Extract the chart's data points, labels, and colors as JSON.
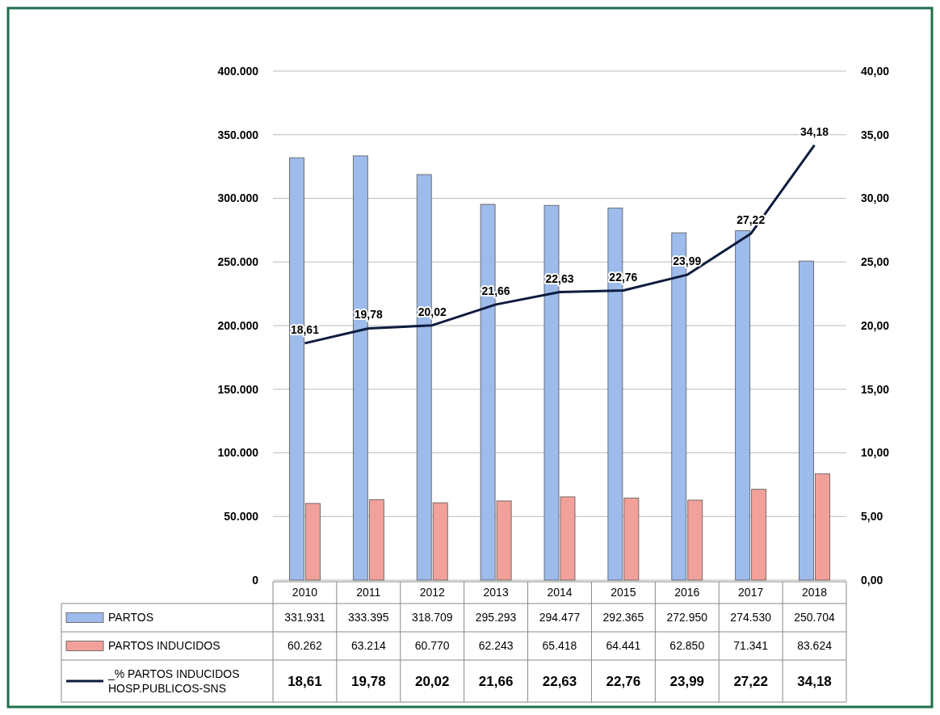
{
  "chart_data": {
    "type": "bar",
    "categories": [
      "2010",
      "2011",
      "2012",
      "2013",
      "2014",
      "2015",
      "2016",
      "2017",
      "2018"
    ],
    "series": [
      {
        "name": "PARTOS",
        "color": "#9dbbeb",
        "values": [
          331931,
          333395,
          318709,
          295293,
          294477,
          292365,
          272950,
          274530,
          250704
        ],
        "value_labels": [
          "331.931",
          "333.395",
          "318.709",
          "295.293",
          "294.477",
          "292.365",
          "272.950",
          "274.530",
          "250.704"
        ]
      },
      {
        "name": "PARTOS INDUCIDOS",
        "color": "#f2a19a",
        "values": [
          60262,
          63214,
          60770,
          62243,
          65418,
          64441,
          62850,
          71341,
          83624
        ],
        "value_labels": [
          "60.262",
          "63.214",
          "60.770",
          "62.243",
          "65.418",
          "64.441",
          "62.850",
          "71.341",
          "83.624"
        ]
      },
      {
        "name": "_% PARTOS INDUCIDOS HOSP.PUBLICOS-SNS",
        "type": "line",
        "axis": "y2",
        "color": "#0d1b3e",
        "values": [
          18.61,
          19.78,
          20.02,
          21.66,
          22.63,
          22.76,
          23.99,
          27.22,
          34.18
        ],
        "value_labels": [
          "18,61",
          "19,78",
          "20,02",
          "21,66",
          "22,63",
          "22,76",
          "23,99",
          "27,22",
          "34,18"
        ]
      }
    ],
    "ylim": [
      0,
      400000
    ],
    "yticks": [
      0,
      {
        "value": 50000,
        "label": "50.000"
      },
      {
        "value": 100000,
        "label": "100.000"
      },
      {
        "value": 150000,
        "label": "150.000"
      },
      {
        "value": 200000,
        "label": "200.000"
      },
      {
        "value": 250000,
        "label": "250.000"
      },
      {
        "value": 300000,
        "label": "300.000"
      },
      {
        "value": 350000,
        "label": "350.000"
      },
      {
        "value": 400000,
        "label": "400.000"
      }
    ],
    "y2lim": [
      0,
      40
    ],
    "y2ticks": [
      {
        "value": 0,
        "label": "0,00"
      },
      {
        "value": 5,
        "label": "5,00"
      },
      {
        "value": 10,
        "label": "10,00"
      },
      {
        "value": 15,
        "label": "15,00"
      },
      {
        "value": 20,
        "label": "20,00"
      },
      {
        "value": 25,
        "label": "25,00"
      },
      {
        "value": 30,
        "label": "30,00"
      },
      {
        "value": 35,
        "label": "35,00"
      },
      {
        "value": 40,
        "label": "40,00"
      }
    ],
    "grid": "y",
    "legend": "bottom",
    "marker": "none",
    "line_style": "solid"
  }
}
